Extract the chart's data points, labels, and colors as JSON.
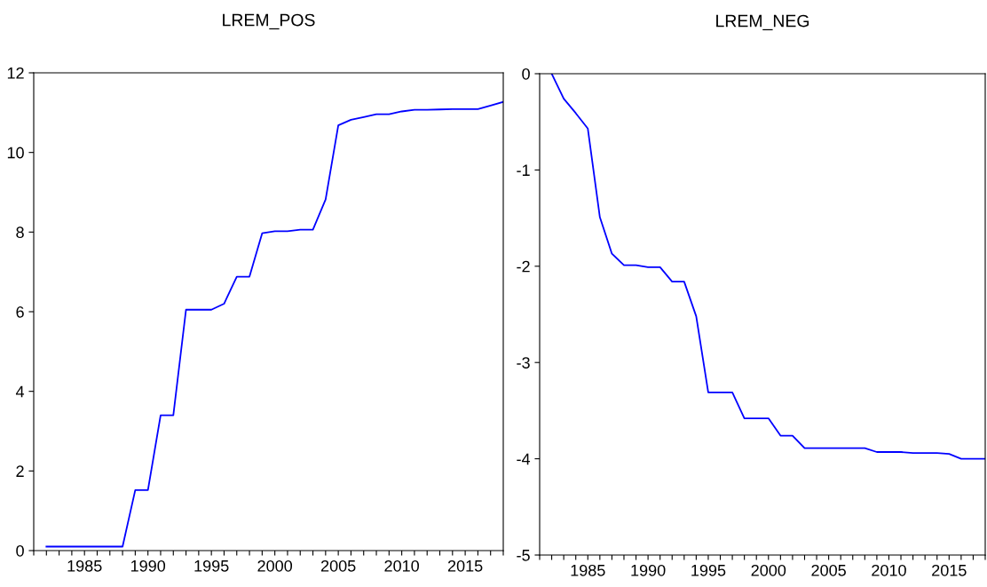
{
  "chart_data": [
    {
      "type": "line",
      "title": "LREM_POS",
      "x": [
        1982,
        1983,
        1984,
        1985,
        1986,
        1987,
        1988,
        1989,
        1990,
        1991,
        1992,
        1993,
        1994,
        1995,
        1996,
        1997,
        1998,
        1999,
        2000,
        2001,
        2002,
        2003,
        2004,
        2005,
        2006,
        2007,
        2008,
        2009,
        2010,
        2011,
        2012,
        2013,
        2014,
        2015,
        2016,
        2017,
        2018
      ],
      "series": [
        {
          "color": "#0000ff",
          "values": [
            0.1,
            0.1,
            0.1,
            0.1,
            0.1,
            0.1,
            0.1,
            1.52,
            1.52,
            3.4,
            3.4,
            6.05,
            6.05,
            6.05,
            6.2,
            6.88,
            6.88,
            7.97,
            8.02,
            8.02,
            8.06,
            8.06,
            8.82,
            10.68,
            10.82,
            10.89,
            10.96,
            10.96,
            11.03,
            11.07,
            11.07,
            11.08,
            11.09,
            11.09,
            11.09,
            11.18,
            11.27
          ]
        }
      ],
      "xlim": [
        1981,
        2018
      ],
      "ylim": [
        0,
        12
      ],
      "yticks": [
        0,
        2,
        4,
        6,
        8,
        10,
        12
      ],
      "xticks": [
        {
          "value": 1981,
          "label": null
        },
        {
          "value": 1982,
          "label": null
        },
        {
          "value": 1983,
          "label": null
        },
        {
          "value": 1984,
          "label": null
        },
        1985,
        {
          "value": 1986,
          "label": null
        },
        {
          "value": 1987,
          "label": null
        },
        {
          "value": 1988,
          "label": null
        },
        {
          "value": 1989,
          "label": null
        },
        1990,
        {
          "value": 1991,
          "label": null
        },
        {
          "value": 1992,
          "label": null
        },
        {
          "value": 1993,
          "label": null
        },
        {
          "value": 1994,
          "label": null
        },
        1995,
        {
          "value": 1996,
          "label": null
        },
        {
          "value": 1997,
          "label": null
        },
        {
          "value": 1998,
          "label": null
        },
        {
          "value": 1999,
          "label": null
        },
        2000,
        {
          "value": 2001,
          "label": null
        },
        {
          "value": 2002,
          "label": null
        },
        {
          "value": 2003,
          "label": null
        },
        {
          "value": 2004,
          "label": null
        },
        2005,
        {
          "value": 2006,
          "label": null
        },
        {
          "value": 2007,
          "label": null
        },
        {
          "value": 2008,
          "label": null
        },
        {
          "value": 2009,
          "label": null
        },
        2010,
        {
          "value": 2011,
          "label": null
        },
        {
          "value": 2012,
          "label": null
        },
        {
          "value": 2013,
          "label": null
        },
        {
          "value": 2014,
          "label": null
        },
        2015,
        {
          "value": 2016,
          "label": null
        },
        {
          "value": 2017,
          "label": null
        },
        {
          "value": 2018,
          "label": null
        }
      ],
      "grid": false,
      "legend": false
    },
    {
      "type": "line",
      "title": "LREM_NEG",
      "x": [
        1982,
        1983,
        1984,
        1985,
        1986,
        1987,
        1988,
        1989,
        1990,
        1991,
        1992,
        1993,
        1994,
        1995,
        1996,
        1997,
        1998,
        1999,
        2000,
        2001,
        2002,
        2003,
        2004,
        2005,
        2006,
        2007,
        2008,
        2009,
        2010,
        2011,
        2012,
        2013,
        2014,
        2015,
        2016,
        2017,
        2018
      ],
      "series": [
        {
          "color": "#0000ff",
          "values": [
            0,
            -0.26,
            -0.41,
            -0.57,
            -1.49,
            -1.87,
            -1.99,
            -1.99,
            -2.01,
            -2.01,
            -2.16,
            -2.16,
            -2.52,
            -3.31,
            -3.31,
            -3.31,
            -3.58,
            -3.58,
            -3.58,
            -3.76,
            -3.76,
            -3.89,
            -3.89,
            -3.89,
            -3.89,
            -3.89,
            -3.89,
            -3.93,
            -3.93,
            -3.93,
            -3.94,
            -3.94,
            -3.94,
            -3.95,
            -4.0,
            -4.0,
            -4.0
          ]
        }
      ],
      "xlim": [
        1981,
        2018
      ],
      "ylim": [
        -5,
        0
      ],
      "yticks": [
        -5,
        -4,
        -3,
        -2,
        -1,
        0
      ],
      "xticks": [
        {
          "value": 1981,
          "label": null
        },
        {
          "value": 1982,
          "label": null
        },
        {
          "value": 1983,
          "label": null
        },
        {
          "value": 1984,
          "label": null
        },
        1985,
        {
          "value": 1986,
          "label": null
        },
        {
          "value": 1987,
          "label": null
        },
        {
          "value": 1988,
          "label": null
        },
        {
          "value": 1989,
          "label": null
        },
        1990,
        {
          "value": 1991,
          "label": null
        },
        {
          "value": 1992,
          "label": null
        },
        {
          "value": 1993,
          "label": null
        },
        {
          "value": 1994,
          "label": null
        },
        1995,
        {
          "value": 1996,
          "label": null
        },
        {
          "value": 1997,
          "label": null
        },
        {
          "value": 1998,
          "label": null
        },
        {
          "value": 1999,
          "label": null
        },
        2000,
        {
          "value": 2001,
          "label": null
        },
        {
          "value": 2002,
          "label": null
        },
        {
          "value": 2003,
          "label": null
        },
        {
          "value": 2004,
          "label": null
        },
        2005,
        {
          "value": 2006,
          "label": null
        },
        {
          "value": 2007,
          "label": null
        },
        {
          "value": 2008,
          "label": null
        },
        {
          "value": 2009,
          "label": null
        },
        2010,
        {
          "value": 2011,
          "label": null
        },
        {
          "value": 2012,
          "label": null
        },
        {
          "value": 2013,
          "label": null
        },
        {
          "value": 2014,
          "label": null
        },
        2015,
        {
          "value": 2016,
          "label": null
        },
        {
          "value": 2017,
          "label": null
        },
        {
          "value": 2018,
          "label": null
        }
      ],
      "grid": false,
      "legend": false
    }
  ]
}
